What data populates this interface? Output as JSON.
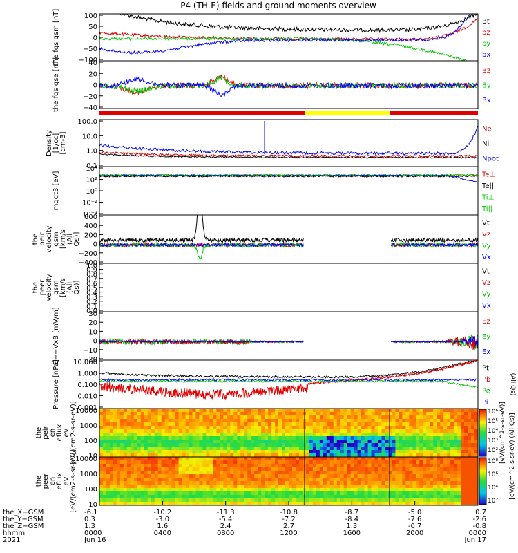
{
  "title": "P4 (TH-E) fields and ground moments overview",
  "colors": {
    "black": "#000000",
    "red": "#e00000",
    "green": "#00c800",
    "blue": "#0000ff",
    "yellow": "#ffff00",
    "gray": "#8c8c8c"
  },
  "chart_data": [
    {
      "type": "line",
      "ylabel": "the fgs gsm [nT]",
      "ylim": [
        -100,
        100
      ],
      "yticks": [
        "100",
        "50",
        "0",
        "−50",
        "−100"
      ],
      "legend": [
        {
          "name": "Bt",
          "color": "black"
        },
        {
          "name": "bz",
          "color": "red"
        },
        {
          "name": "by",
          "color": "green"
        },
        {
          "name": "bx",
          "color": "blue"
        }
      ]
    },
    {
      "type": "line",
      "ylabel": "the fgs gse [nT]",
      "ylim": [
        -50,
        40
      ],
      "yticks": [
        "40",
        "20",
        "0",
        "−20",
        "−40"
      ],
      "legend": [
        {
          "name": "Bz",
          "color": "red"
        },
        {
          "name": "By",
          "color": "green"
        },
        {
          "name": "Bx",
          "color": "blue"
        }
      ]
    },
    {
      "type": "line",
      "ylabel": "Density [1/cc] [cm-3]",
      "scale": "log",
      "yticks": [
        "100.0",
        "10.0",
        "1.0",
        "0.1"
      ],
      "legend": [
        {
          "name": "Ne",
          "color": "red"
        },
        {
          "name": "Ni",
          "color": "black"
        },
        {
          "name": "Npot",
          "color": "blue"
        }
      ]
    },
    {
      "type": "line",
      "ylabel": "mgqt3 [eV]",
      "scale": "log",
      "yticks": [
        "10⁴",
        "10²",
        "10⁰",
        "10⁻²",
        "10⁻⁴"
      ],
      "legend": [
        {
          "name": "Te⊥",
          "color": "red"
        },
        {
          "name": "Te||",
          "color": "black"
        },
        {
          "name": "Ti⊥",
          "color": "green"
        },
        {
          "name": "Ti||",
          "color": "green"
        }
      ]
    },
    {
      "type": "line",
      "ylabel": "the peir velocity gsm [km/s (All Qs)]",
      "ylim": [
        -400,
        600
      ],
      "yticks": [
        "600",
        "400",
        "200",
        "0",
        "−200",
        "−400"
      ],
      "legend": [
        {
          "name": "Vt",
          "color": "black"
        },
        {
          "name": "Vz",
          "color": "red"
        },
        {
          "name": "Vy",
          "color": "green"
        },
        {
          "name": "Vx",
          "color": "blue"
        }
      ]
    },
    {
      "type": "line",
      "ylabel": "the peer velocity gsm [km/s (All Qs)]",
      "ylim": [
        0,
        1
      ],
      "yticks": [
        "1.0",
        "0.9",
        "0.8",
        "0.7",
        "0.6",
        "0.5",
        "0.4",
        "0.3",
        "0.2",
        "0.1",
        "0.0"
      ],
      "legend": [
        {
          "name": "Vt",
          "color": "black"
        },
        {
          "name": "Vz",
          "color": "red"
        },
        {
          "name": "Vy",
          "color": "green"
        },
        {
          "name": "Vx",
          "color": "blue"
        }
      ]
    },
    {
      "type": "line",
      "ylabel": "E=−VxB [mV/m]",
      "ylim": [
        -20,
        30
      ],
      "yticks": [
        "30",
        "20",
        "10",
        "0",
        "−10",
        "−20"
      ],
      "legend": [
        {
          "name": "Ez",
          "color": "red"
        },
        {
          "name": "Ey",
          "color": "green"
        },
        {
          "name": "Ex",
          "color": "blue"
        }
      ]
    },
    {
      "type": "line",
      "ylabel": "Pressure [nPa]",
      "scale": "log",
      "yticks": [
        "10.000",
        "1.000",
        "0.100",
        "0.010",
        "0.001"
      ],
      "legend": [
        {
          "name": "Pt",
          "color": "black"
        },
        {
          "name": "Pb",
          "color": "red"
        },
        {
          "name": "Pe",
          "color": "green"
        },
        {
          "name": "Pi",
          "color": "blue"
        }
      ],
      "right_label": "(All Qs)"
    },
    {
      "type": "heatmap",
      "ylabel": "the peir en eflux eV [eV/(cm2-s-sr-eV)]",
      "scale": "log",
      "yticks": [
        "10000",
        "1000",
        "100",
        "10"
      ]
    },
    {
      "type": "heatmap",
      "ylabel": "the peer en eflux eV [eV/(cm2-s-sr-eV)]",
      "scale": "log",
      "yticks": [
        "10000",
        "1000",
        "100",
        "10"
      ]
    }
  ],
  "colorbar": {
    "ticks": [
      "10⁶",
      "10⁵",
      "10⁴",
      "10³",
      "10²"
    ],
    "label": "[eV/(cm^2-s-sr-eV)]"
  },
  "colorbar2": {
    "ticks": [
      "10⁸",
      "10⁶",
      "10⁴",
      "10²"
    ],
    "label": "[eV/(cm^2-s-sr-eV) (All Qs)]"
  },
  "xaxis": {
    "row_labels": [
      "the_X−GSM",
      "the_Y−GSM",
      "the_Z−GSM",
      "hhmm",
      "2021"
    ],
    "ticks": [
      {
        "x": "-6.1",
        "y": "0.3",
        "z": "1.3",
        "hhmm": "0000",
        "date": "Jun 16"
      },
      {
        "x": "-10.2",
        "y": "-3.0",
        "z": "1.6",
        "hhmm": "0400",
        "date": ""
      },
      {
        "x": "-11.3",
        "y": "-5.4",
        "z": "2.4",
        "hhmm": "0800",
        "date": ""
      },
      {
        "x": "-10.8",
        "y": "-7.2",
        "z": "2.7",
        "hhmm": "1200",
        "date": ""
      },
      {
        "x": "-8.7",
        "y": "-8.4",
        "z": "1.3",
        "hhmm": "1600",
        "date": ""
      },
      {
        "x": "-5.0",
        "y": "-7.6",
        "z": "-0.7",
        "hhmm": "2000",
        "date": ""
      },
      {
        "x": "0.7",
        "y": "-2.6",
        "z": "-0.8",
        "hhmm": "0000",
        "date": "Jun 17"
      }
    ]
  }
}
